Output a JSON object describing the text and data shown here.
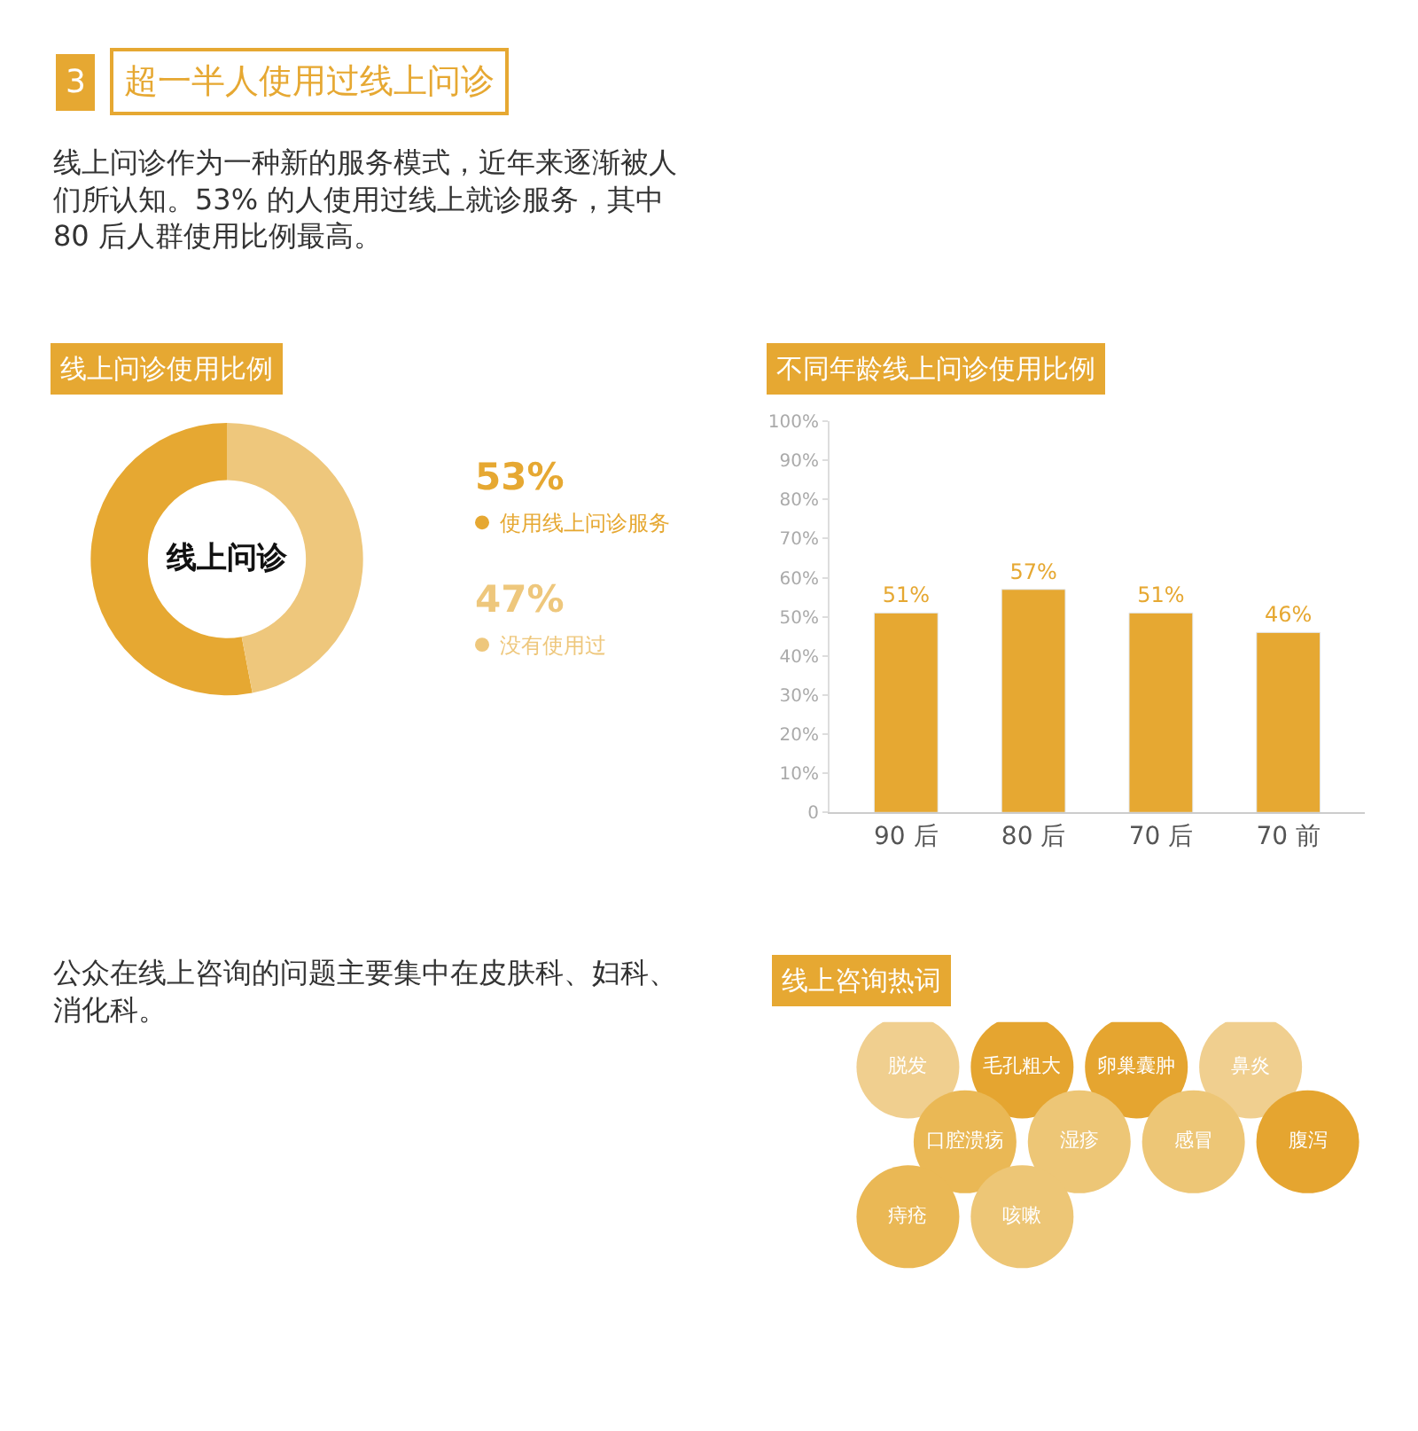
{
  "chart_data": [
    {
      "type": "other",
      "title": "超一半人使用过线上问诊",
      "annotations": [
        "3",
        "线上问诊作为一种新的服务模式，近年来逐渐被人们所认知。53% 的人使用过线上就诊服务，其中 80 后人群使用比例最高。"
      ]
    },
    {
      "type": "donut",
      "title": "线上问诊使用比例",
      "categories": [
        "使用线上问诊服务",
        "没有使用过"
      ],
      "values": [
        53,
        47
      ],
      "colors": [
        "#e6a832",
        "#eec77c"
      ],
      "value_labels": [
        "53%",
        "47%"
      ],
      "legend": "right",
      "annotations": [
        "线上问诊"
      ]
    },
    {
      "type": "bar",
      "title": "不同年龄线上问诊使用比例",
      "categories": [
        "90 后",
        "80 后",
        "70 后",
        "70 前"
      ],
      "values": [
        51,
        57,
        51,
        46
      ],
      "color": "#e6a832",
      "value_labels": [
        "51%",
        "57%",
        "51%",
        "46%"
      ],
      "ylim": [
        0,
        100
      ],
      "yticks": [
        0,
        {
          "value": 10,
          "label": "10%"
        },
        {
          "value": 20,
          "label": "20%"
        },
        {
          "value": 30,
          "label": "30%"
        },
        {
          "value": 40,
          "label": "40%"
        },
        {
          "value": 50,
          "label": "50%"
        },
        {
          "value": 60,
          "label": "60%"
        },
        {
          "value": 70,
          "label": "70%"
        },
        {
          "value": 80,
          "label": "80%"
        },
        {
          "value": 90,
          "label": "90%"
        },
        {
          "value": 100,
          "label": "100%"
        }
      ]
    },
    {
      "type": "other",
      "title": "线上咨询热词",
      "categories": [
        "脱发",
        "毛孔粗大",
        "卵巢囊肿",
        "鼻炎",
        "口腔溃疡",
        "湿疹",
        "感冒",
        "腹泻",
        "痔疮",
        "咳嗽"
      ],
      "colors": [
        "#f0cf8f",
        "#e5a530",
        "#e5a530",
        "#f0cf8f",
        "#eab855",
        "#edc676",
        "#edc676",
        "#e5a530",
        "#eab855",
        "#edc676"
      ],
      "annotations": [
        "公众在线上咨询的问题主要集中在皮肤科、妇科、消化科。"
      ]
    }
  ]
}
